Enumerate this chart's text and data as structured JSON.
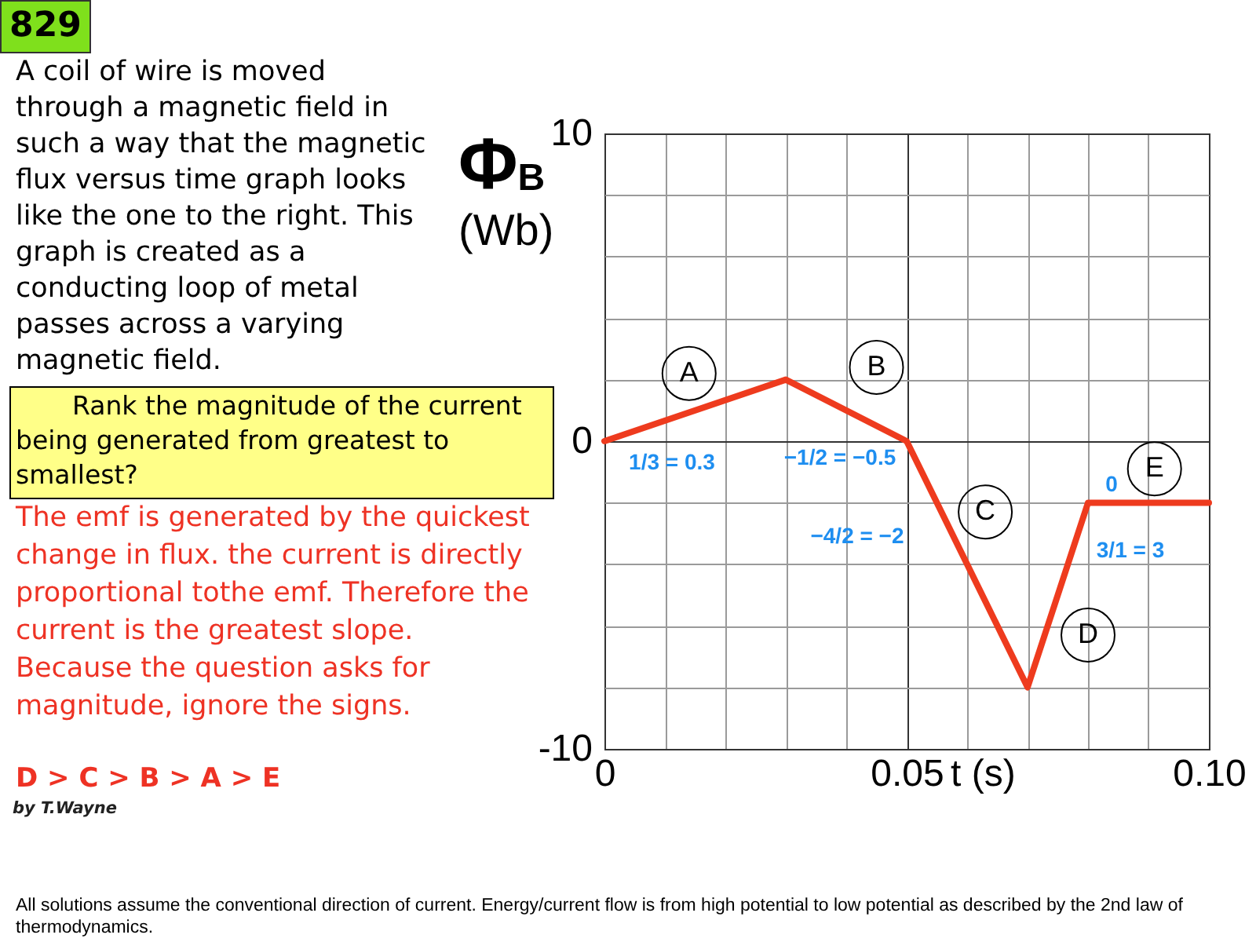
{
  "chart_data": {
    "type": "line",
    "xlabel": "t (s)",
    "ylabel": "Φ$_{B}$ (Wb)",
    "x": [
      0,
      0.03,
      0.05,
      0.07,
      0.08,
      0.1
    ],
    "series": [
      {
        "color": "#ee3b1e",
        "values": [
          0,
          2,
          0,
          -8,
          -2,
          -2
        ]
      }
    ],
    "xlim": [
      0,
      0.1
    ],
    "ylim": [
      -10,
      10
    ],
    "xticks": [
      0,
      {
        "value": 0.01,
        "label": null
      },
      {
        "value": 0.02,
        "label": null
      },
      {
        "value": 0.03,
        "label": null
      },
      {
        "value": 0.04,
        "label": null
      },
      0.05,
      {
        "value": 0.06,
        "label": null
      },
      {
        "value": 0.07,
        "label": null
      },
      {
        "value": 0.08,
        "label": null
      },
      {
        "value": 0.09,
        "label": null
      },
      {
        "value": 0.1,
        "label": "0.10"
      }
    ],
    "yticks": [
      -10,
      {
        "value": -8,
        "label": null
      },
      {
        "value": -6,
        "label": null
      },
      {
        "value": -4,
        "label": null
      },
      {
        "value": -2,
        "label": null
      },
      0,
      {
        "value": 2,
        "label": null
      },
      {
        "value": 4,
        "label": null
      },
      {
        "value": 6,
        "label": null
      },
      {
        "value": 8,
        "label": null
      },
      10
    ],
    "grid": true,
    "line_style": "solid",
    "annotations": [
      "829",
      "A coil of wire is moved through a magnetic field in such a way that the magnetic flux versus time graph looks like the one to the right. This graph is created as a conducting loop of metal passes across a varying magnetic field.",
      "Rank the magnitude of the current being generated from greatest to smallest?",
      "The emf is generated by the quickest change in flux. the current is directly proportional tothe emf. Therefore the current is the greatest slope. Because the question asks for magnitude, ignore the signs.",
      "D > C > B > A > E",
      "by T.Wayne",
      "All solutions assume the conventional direction of current. Energy/current flow is from high potential to low potential as described by the 2nd law of thermodynamics.",
      {
        "text": "A",
        "x": 0.014,
        "y": 2.2
      },
      {
        "text": "B",
        "x": 0.045,
        "y": 2.4
      },
      {
        "text": "C",
        "x": 0.063,
        "y": -2.3
      },
      {
        "text": "D",
        "x": 0.08,
        "y": -6.3
      },
      {
        "text": "E",
        "x": 0.091,
        "y": -0.9
      },
      "1/3 = 0.3",
      "−1/2 = −0.5",
      "−4/2 = −2",
      "0",
      "3/1 = 3"
    ]
  }
}
